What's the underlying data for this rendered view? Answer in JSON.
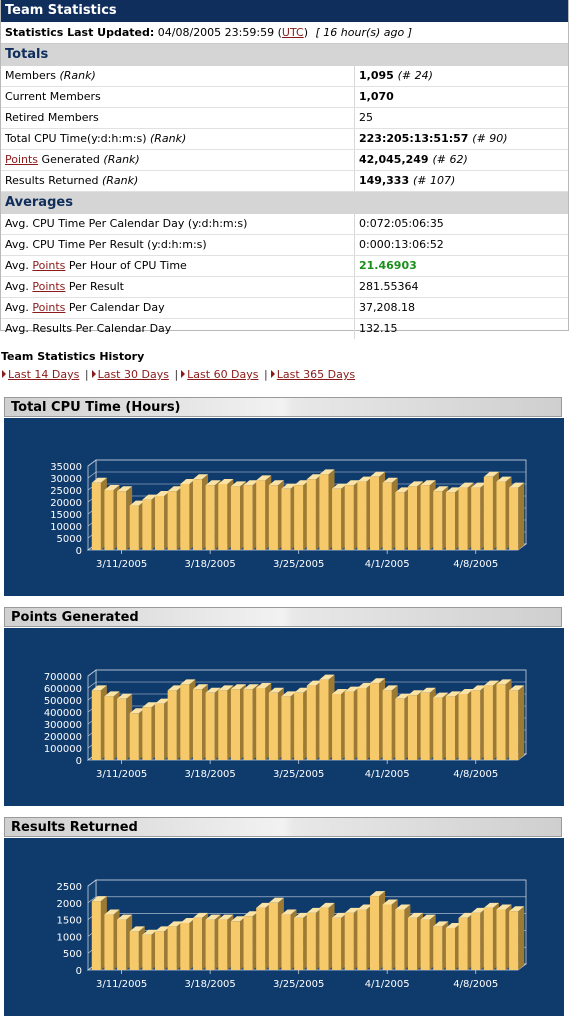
{
  "header": {
    "title": "Team Statistics",
    "updated_label": "Statistics Last Updated:",
    "updated_value": "04/08/2005 23:59:59",
    "tz_open": "(",
    "tz": "UTC",
    "tz_close": ")",
    "ago": "[ 16 hour(s) ago ]"
  },
  "totals": {
    "heading": "Totals",
    "rows": [
      {
        "label": "Members",
        "rank": "(Rank)",
        "value": "1,095",
        "extra": "(# 24)"
      },
      {
        "label": "Current Members",
        "rank": "",
        "value": "1,070",
        "extra": ""
      },
      {
        "label": "Retired Members",
        "rank": "",
        "value": "25",
        "extra": ""
      },
      {
        "label": "Total CPU Time(y:d:h:m:s)",
        "rank": "(Rank)",
        "value": "223:205:13:51:57",
        "extra": "(# 90)"
      },
      {
        "link": "Points",
        "label": " Generated",
        "rank": "(Rank)",
        "value": "42,045,249",
        "extra": "(# 62)"
      },
      {
        "label": "Results Returned",
        "rank": "(Rank)",
        "value": "149,333",
        "extra": "(# 107)"
      }
    ]
  },
  "averages": {
    "heading": "Averages",
    "rows": [
      {
        "label": "Avg. CPU Time Per Calendar Day (y:d:h:m:s)",
        "value": "0:072:05:06:35"
      },
      {
        "label": "Avg. CPU Time Per Result (y:d:h:m:s)",
        "value": "0:000:13:06:52"
      },
      {
        "pre": "Avg. ",
        "link": "Points",
        "post": " Per Hour of CPU Time",
        "value": "21.46903"
      },
      {
        "pre": "Avg. ",
        "link": "Points",
        "post": " Per Result",
        "value": "281.55364"
      },
      {
        "pre": "Avg. ",
        "link": "Points",
        "post": " Per Calendar Day",
        "value": "37,208.18"
      },
      {
        "label": "Avg. Results Per Calendar Day",
        "value": "132.15"
      }
    ]
  },
  "history": {
    "title": "Team Statistics History",
    "links": [
      "Last 14 Days",
      "Last 30 Days",
      "Last 60 Days",
      "Last 365 Days"
    ],
    "separator": "|"
  },
  "colors": {
    "chart_bg": "#0e3a6c",
    "bar": "#f6c96a",
    "title_bg": "#0f2e5c",
    "link": "#8b1a1a",
    "green": "#1a8f1a"
  },
  "chart_data": [
    {
      "type": "bar",
      "title": "Total CPU Time (Hours)",
      "x_tick_labels": [
        "3/11/2005",
        "3/18/2005",
        "3/25/2005",
        "4/1/2005",
        "4/8/2005"
      ],
      "y_ticks": [
        0,
        5000,
        10000,
        15000,
        20000,
        25000,
        30000,
        35000
      ],
      "ylim": [
        0,
        35000
      ],
      "values": [
        28000,
        25000,
        24500,
        18500,
        21000,
        22500,
        24500,
        27500,
        29500,
        27000,
        27500,
        26500,
        27000,
        29000,
        27000,
        25500,
        27000,
        29500,
        31500,
        25500,
        27000,
        28500,
        30500,
        28000,
        24000,
        26500,
        27000,
        24500,
        24000,
        26000,
        26000,
        30500,
        28500,
        26000
      ]
    },
    {
      "type": "bar",
      "title": "Points Generated",
      "x_tick_labels": [
        "3/11/2005",
        "3/18/2005",
        "3/25/2005",
        "4/1/2005",
        "4/8/2005"
      ],
      "y_ticks": [
        0,
        100000,
        200000,
        300000,
        400000,
        500000,
        600000,
        700000
      ],
      "ylim": [
        0,
        700000
      ],
      "values": [
        580000,
        530000,
        510000,
        390000,
        440000,
        470000,
        580000,
        630000,
        590000,
        560000,
        580000,
        590000,
        590000,
        600000,
        560000,
        530000,
        560000,
        620000,
        670000,
        550000,
        570000,
        600000,
        640000,
        580000,
        510000,
        540000,
        560000,
        520000,
        530000,
        550000,
        580000,
        620000,
        630000,
        580000
      ]
    },
    {
      "type": "bar",
      "title": "Results Returned",
      "x_tick_labels": [
        "3/11/2005",
        "3/18/2005",
        "3/25/2005",
        "4/1/2005",
        "4/8/2005"
      ],
      "y_ticks": [
        0,
        500,
        1000,
        1500,
        2000,
        2500
      ],
      "ylim": [
        0,
        2500
      ],
      "values": [
        2050,
        1650,
        1500,
        1150,
        1050,
        1150,
        1300,
        1400,
        1550,
        1500,
        1500,
        1450,
        1600,
        1850,
        2000,
        1650,
        1550,
        1700,
        1850,
        1550,
        1700,
        1800,
        2200,
        1950,
        1800,
        1550,
        1500,
        1300,
        1250,
        1550,
        1700,
        1850,
        1800,
        1750
      ]
    }
  ]
}
